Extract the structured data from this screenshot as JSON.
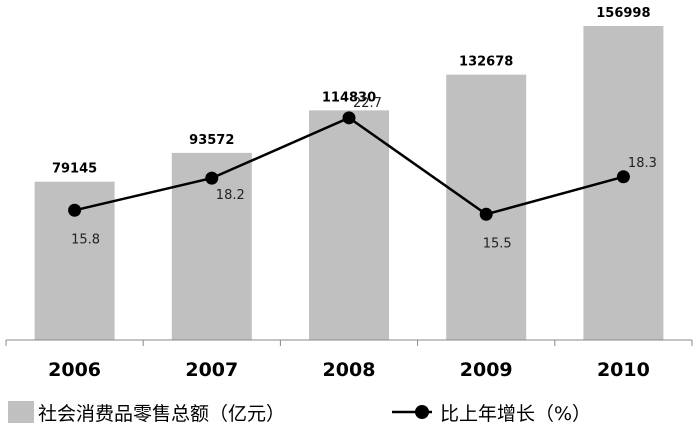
{
  "chart_data": {
    "type": "bar",
    "categories": [
      "2006",
      "2007",
      "2008",
      "2009",
      "2010"
    ],
    "series": [
      {
        "name": "社会消费品零售总额（亿元）",
        "type": "bar",
        "values": [
          79145,
          93572,
          114830,
          132678,
          156998
        ],
        "color": "#c0c0c0"
      },
      {
        "name": "比上年增长（%）",
        "type": "line",
        "values": [
          15.8,
          18.2,
          22.7,
          15.5,
          18.3
        ],
        "color": "#000000"
      }
    ],
    "title": "",
    "xlabel": "",
    "ylabel": "",
    "ylim": [
      0,
      160000
    ],
    "ylim_secondary": [
      0,
      30
    ],
    "grid": false,
    "legend": "bottom"
  }
}
